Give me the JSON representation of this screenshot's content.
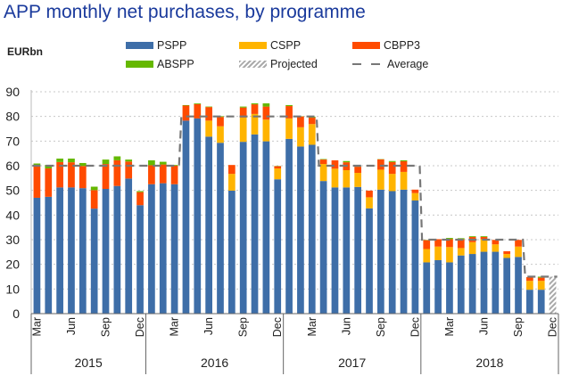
{
  "chart_data": {
    "type": "bar",
    "stacked": true,
    "title": "APP monthly net purchases, by programme",
    "ylabel": "EURbn",
    "xlabel": "",
    "ylim": [
      0,
      90
    ],
    "yticks": [
      0,
      10,
      20,
      30,
      40,
      50,
      60,
      70,
      80,
      90
    ],
    "grid": true,
    "legend_position": "top",
    "month_tick_labels": [
      "Mar",
      "Jun",
      "Sep",
      "Dec"
    ],
    "years": [
      "2015",
      "2016",
      "2017",
      "2018"
    ],
    "categories": [
      "Mar 2015",
      "Apr 2015",
      "May 2015",
      "Jun 2015",
      "Jul 2015",
      "Aug 2015",
      "Sep 2015",
      "Oct 2015",
      "Nov 2015",
      "Dec 2015",
      "Jan 2016",
      "Feb 2016",
      "Mar 2016",
      "Apr 2016",
      "May 2016",
      "Jun 2016",
      "Jul 2016",
      "Aug 2016",
      "Sep 2016",
      "Oct 2016",
      "Nov 2016",
      "Dec 2016",
      "Jan 2017",
      "Feb 2017",
      "Mar 2017",
      "Apr 2017",
      "May 2017",
      "Jun 2017",
      "Jul 2017",
      "Aug 2017",
      "Sep 2017",
      "Oct 2017",
      "Nov 2017",
      "Dec 2017",
      "Jan 2018",
      "Feb 2018",
      "Mar 2018",
      "Apr 2018",
      "May 2018",
      "Jun 2018",
      "Jul 2018",
      "Aug 2018",
      "Sep 2018",
      "Oct 2018",
      "Nov 2018",
      "Dec 2018"
    ],
    "series": [
      {
        "name": "PSPP",
        "color": "#3e6ea8",
        "values": [
          47.0,
          47.4,
          51.2,
          51.2,
          50.9,
          42.6,
          50.6,
          51.8,
          54.8,
          44.0,
          52.5,
          52.9,
          52.5,
          78.3,
          79.2,
          71.8,
          69.3,
          49.9,
          69.7,
          72.7,
          69.9,
          54.5,
          70.9,
          67.8,
          68.5,
          53.8,
          51.2,
          51.2,
          51.4,
          42.7,
          50.3,
          49.7,
          50.3,
          45.9,
          20.8,
          21.7,
          20.8,
          23.6,
          24.2,
          25.1,
          25.1,
          22.6,
          23.0,
          9.7,
          9.7,
          0
        ]
      },
      {
        "name": "CSPP",
        "color": "#ffb400",
        "values": [
          0,
          0,
          0,
          0,
          0,
          0,
          0,
          0,
          0,
          0,
          0,
          0,
          0,
          0,
          0,
          6.5,
          6.7,
          6.8,
          9.8,
          8.3,
          8.8,
          4.4,
          8.3,
          7.8,
          8.4,
          6.9,
          7.6,
          7.0,
          5.7,
          4.5,
          8.1,
          7.0,
          7.2,
          3.0,
          5.4,
          5.5,
          6.2,
          3.0,
          4.8,
          5.1,
          3.0,
          1.6,
          4.2,
          3.6,
          3.6,
          0
        ]
      },
      {
        "name": "CBPP3",
        "color": "#ff4b00",
        "values": [
          12.9,
          11.5,
          10.3,
          10.2,
          9.0,
          7.5,
          10.1,
          10.4,
          6.9,
          5.3,
          7.7,
          7.6,
          7.5,
          6.1,
          5.8,
          5.5,
          3.8,
          3.6,
          4.1,
          3.9,
          5.3,
          0.9,
          5.0,
          4.4,
          2.6,
          1.8,
          3.4,
          3.2,
          2.5,
          2.7,
          4.2,
          4.8,
          4.3,
          1.4,
          3.6,
          3.0,
          3.2,
          3.5,
          2.1,
          0.9,
          1.8,
          1.1,
          2.7,
          1.5,
          1.3,
          0
        ]
      },
      {
        "name": "ABSPP",
        "color": "#65b800",
        "values": [
          1.0,
          1.4,
          1.4,
          1.5,
          1.2,
          1.4,
          1.8,
          1.6,
          0.8,
          0.4,
          2.0,
          1.1,
          0.3,
          0.2,
          0.3,
          0.2,
          0.3,
          0,
          0.4,
          0.4,
          1.3,
          0.1,
          0.4,
          0.1,
          0.4,
          0.2,
          0,
          0.5,
          0.2,
          0,
          0.1,
          0.4,
          0.4,
          0,
          0.1,
          0,
          0.5,
          0.5,
          0.3,
          0.3,
          0,
          0,
          0,
          0,
          0.4,
          0
        ]
      },
      {
        "name": "Projected",
        "color": "#aaaaaa",
        "pattern": "hatched",
        "values": [
          0,
          0,
          0,
          0,
          0,
          0,
          0,
          0,
          0,
          0,
          0,
          0,
          0,
          0,
          0,
          0,
          0,
          0,
          0,
          0,
          0,
          0,
          0,
          0,
          0,
          0,
          0,
          0,
          0,
          0,
          0,
          0,
          0,
          0,
          0,
          0,
          0,
          0,
          0,
          0,
          0,
          0,
          0,
          0,
          0,
          15
        ]
      }
    ],
    "average": {
      "name": "Average",
      "style": "dashed",
      "color": "#777777",
      "values": [
        60,
        60,
        60,
        60,
        60,
        60,
        60,
        60,
        60,
        60,
        60,
        60,
        60,
        80,
        80,
        80,
        80,
        80,
        80,
        80,
        80,
        80,
        80,
        80,
        80,
        60,
        60,
        60,
        60,
        60,
        60,
        60,
        60,
        60,
        30,
        30,
        30,
        30,
        30,
        30,
        30,
        30,
        30,
        15,
        15,
        15
      ]
    }
  },
  "legend": {
    "items": [
      {
        "label": "PSPP",
        "color": "#3e6ea8",
        "kind": "fill"
      },
      {
        "label": "CSPP",
        "color": "#ffb400",
        "kind": "fill"
      },
      {
        "label": "CBPP3",
        "color": "#ff4b00",
        "kind": "fill"
      },
      {
        "label": "ABSPP",
        "color": "#65b800",
        "kind": "fill"
      },
      {
        "label": "Projected",
        "color": "#aaaaaa",
        "kind": "hatch"
      },
      {
        "label": "Average",
        "color": "#777777",
        "kind": "dash"
      }
    ]
  }
}
